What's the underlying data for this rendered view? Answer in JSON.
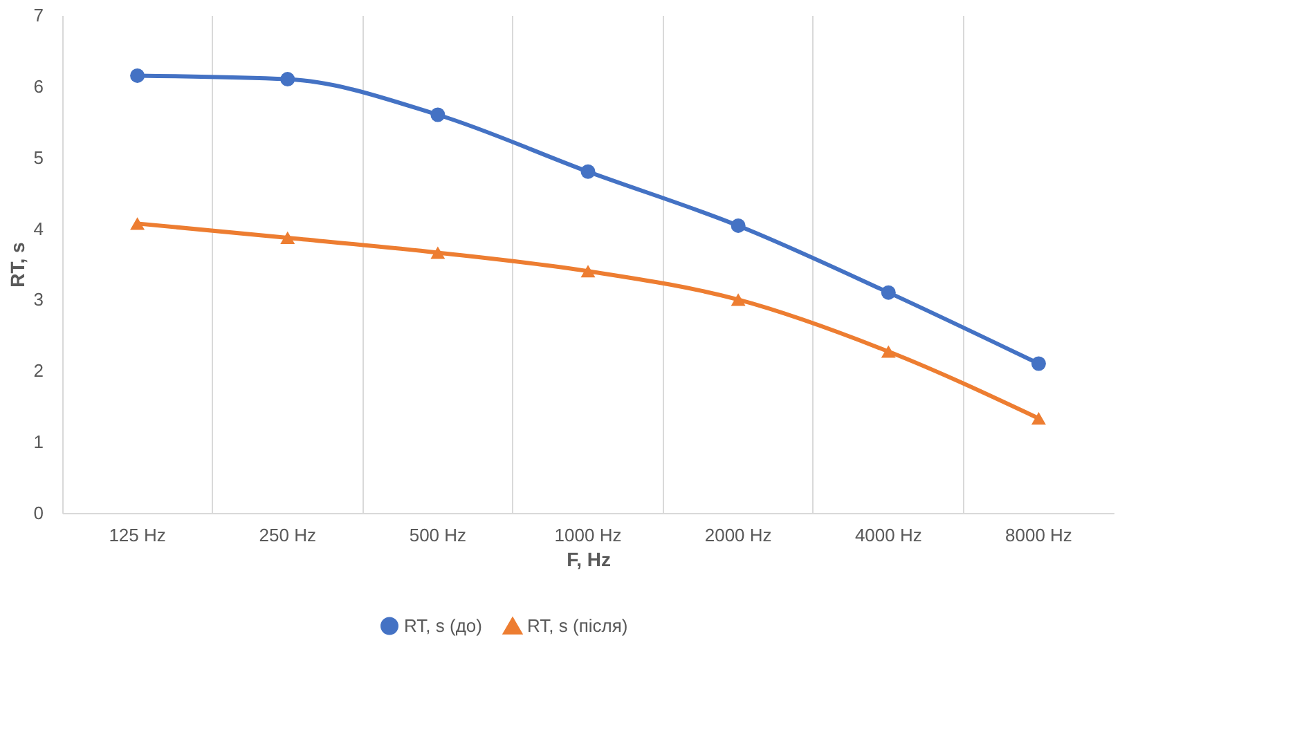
{
  "chart_data": {
    "type": "line",
    "xlabel": "F, Hz",
    "ylabel": "RT, s",
    "categories": [
      "125 Hz",
      "250 Hz",
      "500 Hz",
      "1000 Hz",
      "2000 Hz",
      "4000 Hz",
      "8000 Hz"
    ],
    "series": [
      {
        "name": "RT, s (до)",
        "color": "#4472c4",
        "marker": "circle",
        "values": [
          6.15,
          6.1,
          5.6,
          4.8,
          4.04,
          3.1,
          2.1
        ]
      },
      {
        "name": "RT, s (після)",
        "color": "#ed7d31",
        "marker": "triangle",
        "values": [
          4.07,
          3.87,
          3.66,
          3.4,
          3.0,
          2.27,
          1.33
        ]
      }
    ],
    "ylim": [
      0,
      7
    ],
    "yticks": [
      0,
      1,
      2,
      3,
      4,
      5,
      6,
      7
    ],
    "grid": "x",
    "legend": "bottom",
    "line_style": "solid"
  }
}
